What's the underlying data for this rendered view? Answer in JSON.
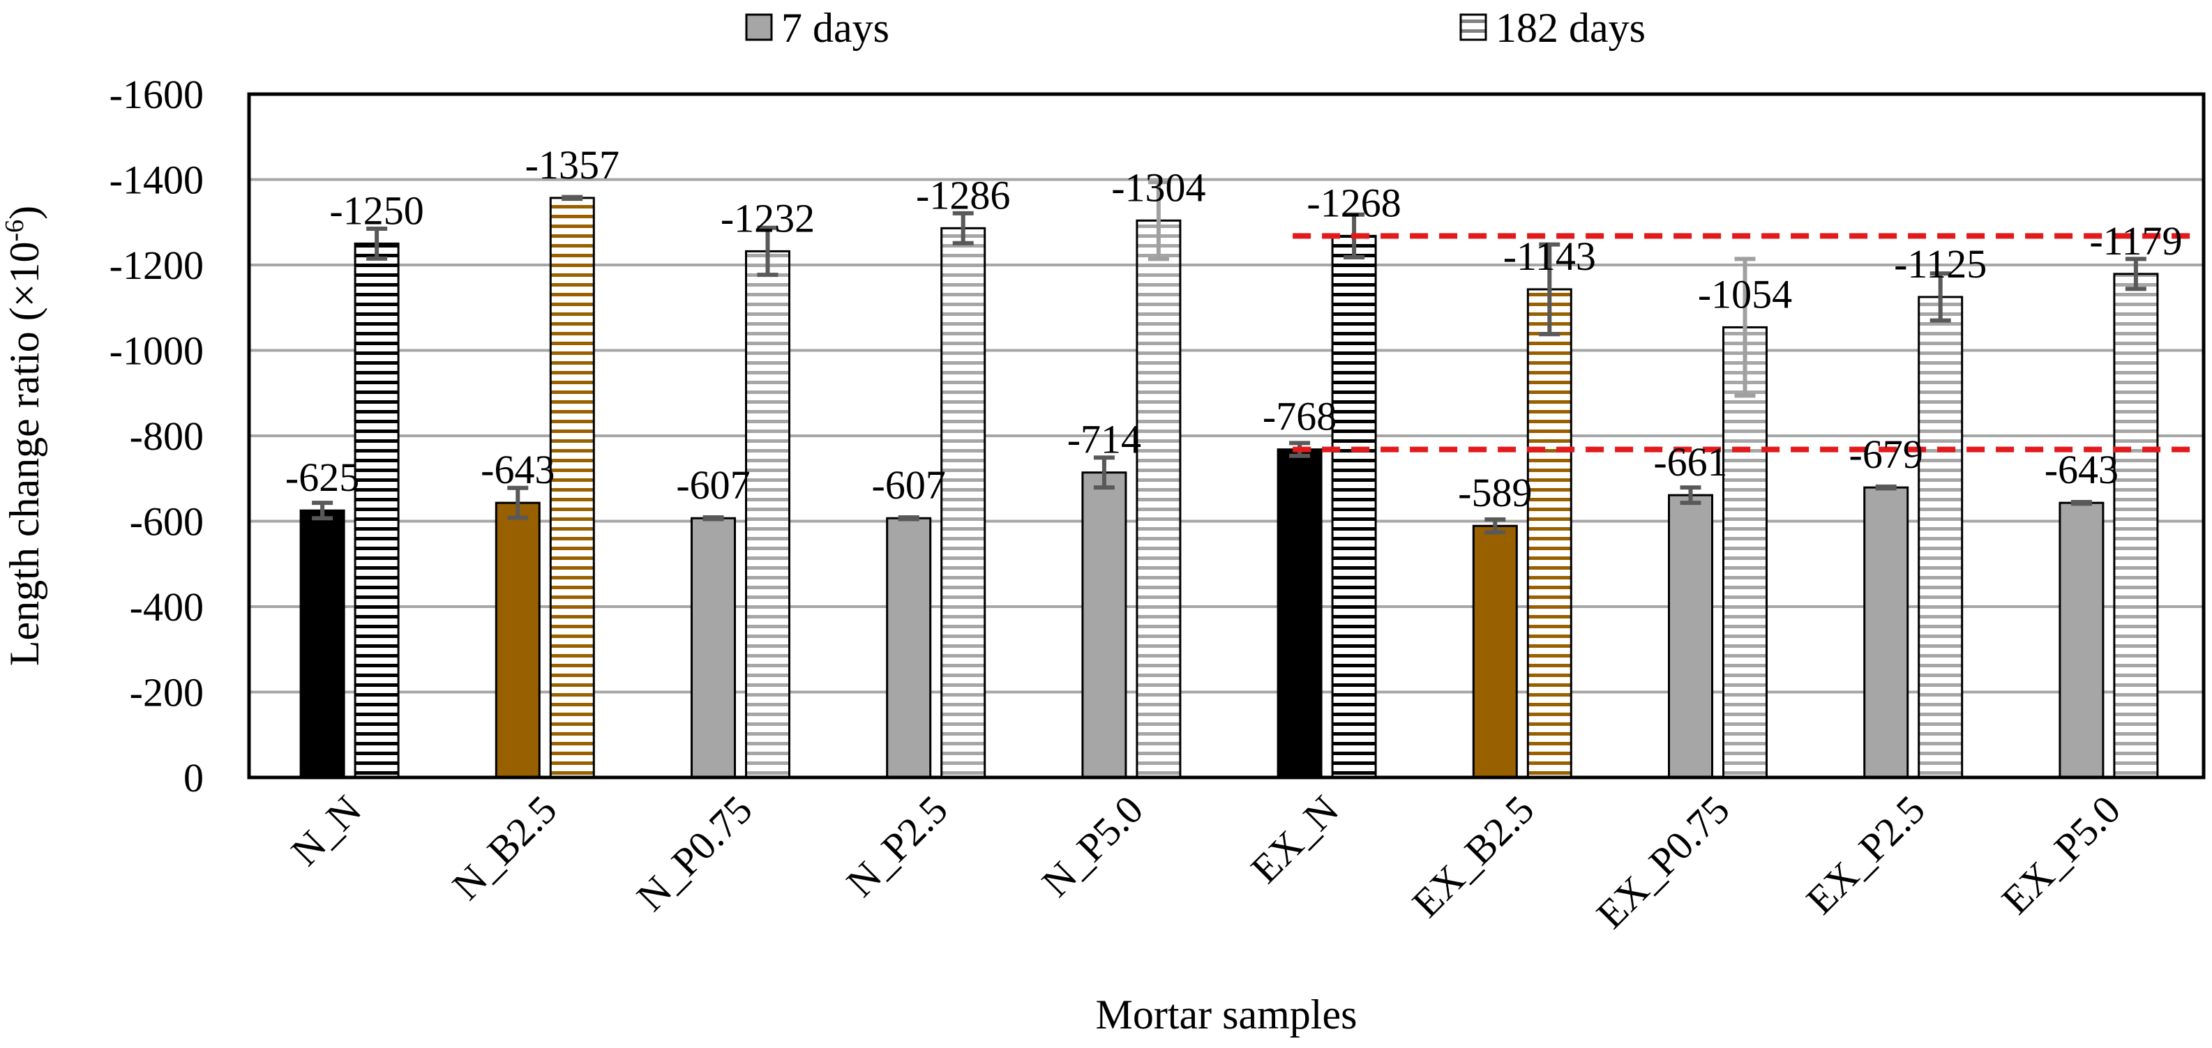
{
  "chart_data": {
    "type": "bar",
    "title": "",
    "xlabel": "Mortar samples",
    "ylabel": "Length change ratio (×10",
    "ylabel_exponent": "-6",
    "ylabel_close": ")",
    "ylim": [
      0,
      -1600
    ],
    "y_ticks": [
      0,
      -200,
      -400,
      -600,
      -800,
      -1000,
      -1200,
      -1400,
      -1600
    ],
    "y_tick_labels": [
      "0",
      "-200",
      "-400",
      "-600",
      "-800",
      "-1000",
      "-1200",
      "-1400",
      "-1600"
    ],
    "grid": true,
    "legend_position": "top",
    "categories": [
      "N_N",
      "N_B2.5",
      "N_P0.75",
      "N_P2.5",
      "N_P5.0",
      "EX_N",
      "EX_B2.5",
      "EX_P0.75",
      "EX_P2.5",
      "EX_P5.0"
    ],
    "category_colors": [
      "#000000",
      "#996000",
      "#a6a6a6",
      "#a6a6a6",
      "#a6a6a6",
      "#000000",
      "#996000",
      "#a6a6a6",
      "#a6a6a6",
      "#a6a6a6"
    ],
    "series": [
      {
        "name": "7 days",
        "pattern": "solid",
        "values": [
          -625,
          -643,
          -607,
          -607,
          -714,
          -768,
          -589,
          -661,
          -679,
          -643
        ],
        "error": [
          18,
          35,
          2,
          2,
          35,
          15,
          15,
          18,
          2,
          2
        ],
        "labels": [
          "-625",
          "-643",
          "-607",
          "-607",
          "-714",
          "-768",
          "-589",
          "-661",
          "-679",
          "-643"
        ]
      },
      {
        "name": "182 days",
        "pattern": "horizontal-stripes",
        "values": [
          -1250,
          -1357,
          -1232,
          -1286,
          -1304,
          -1268,
          -1143,
          -1054,
          -1125,
          -1179
        ],
        "error": [
          35,
          2,
          55,
          35,
          90,
          50,
          105,
          160,
          55,
          35
        ],
        "labels": [
          "-1250",
          "-1357",
          "-1232",
          "-1286",
          "-1304",
          "-1268",
          "-1143",
          "-1054",
          "-1125",
          "-1179"
        ]
      }
    ],
    "reference_lines": [
      {
        "value": -1268,
        "color": "#e31a1c",
        "style": "dashed",
        "from_category": "EX_N"
      },
      {
        "value": -768,
        "color": "#e31a1c",
        "style": "dashed",
        "from_category": "EX_N"
      }
    ]
  }
}
